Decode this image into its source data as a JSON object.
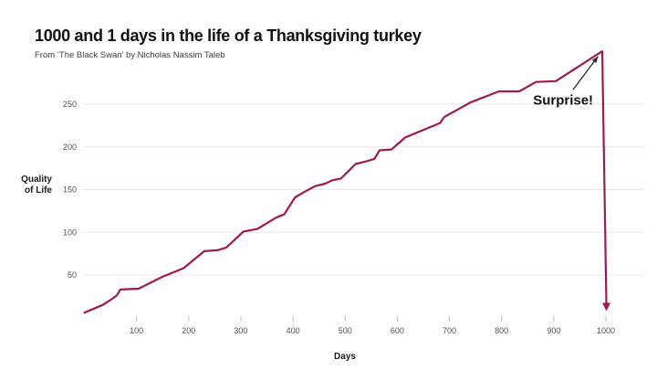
{
  "colors": {
    "background": "#ffffff",
    "line": "#a01a52",
    "grid": "#e8e8e8",
    "tick_mark": "#bdbdbd",
    "tick_label": "#525252",
    "title": "#111111",
    "subtitle": "#3f3f3f",
    "annotation_arrow": "#2b2b2b"
  },
  "chart_data": {
    "type": "line",
    "title": "1000 and 1 days in the life of a Thanksgiving turkey",
    "subtitle": "From ‘The Black Swan’ by Nicholas Nassim Taleb",
    "xlabel": "Days",
    "ylabel": "Quality of Life",
    "ylabel_lines": [
      "Quality",
      "of Life"
    ],
    "xlim": [
      0,
      1050
    ],
    "ylim": [
      0,
      320
    ],
    "x_ticks": [
      100,
      200,
      300,
      400,
      500,
      600,
      700,
      800,
      900,
      1000
    ],
    "y_ticks": [
      50,
      100,
      150,
      200,
      250
    ],
    "grid": "horizontal-only",
    "legend": "none",
    "series": [
      {
        "name": "Quality of Life",
        "end_marker": "arrow-down",
        "points": [
          [
            0,
            6
          ],
          [
            35,
            15
          ],
          [
            48,
            20
          ],
          [
            62,
            26
          ],
          [
            69,
            33
          ],
          [
            104,
            34
          ],
          [
            150,
            48
          ],
          [
            190,
            58
          ],
          [
            230,
            78
          ],
          [
            255,
            79
          ],
          [
            272,
            82
          ],
          [
            305,
            101
          ],
          [
            332,
            104
          ],
          [
            367,
            117
          ],
          [
            383,
            121
          ],
          [
            404,
            141
          ],
          [
            418,
            146
          ],
          [
            442,
            154
          ],
          [
            462,
            157
          ],
          [
            475,
            161
          ],
          [
            492,
            163
          ],
          [
            520,
            180
          ],
          [
            540,
            183
          ],
          [
            556,
            186
          ],
          [
            566,
            196
          ],
          [
            589,
            197
          ],
          [
            615,
            211
          ],
          [
            682,
            228
          ],
          [
            690,
            235
          ],
          [
            740,
            252
          ],
          [
            795,
            265
          ],
          [
            834,
            265
          ],
          [
            866,
            276
          ],
          [
            904,
            277
          ],
          [
            993,
            312
          ],
          [
            1001,
            10
          ]
        ]
      }
    ],
    "annotation": {
      "text": "Surprise!",
      "label_day": 918,
      "label_value": 254,
      "arrow_from": [
        937,
        267
      ],
      "arrow_to": [
        985,
        306
      ]
    }
  }
}
